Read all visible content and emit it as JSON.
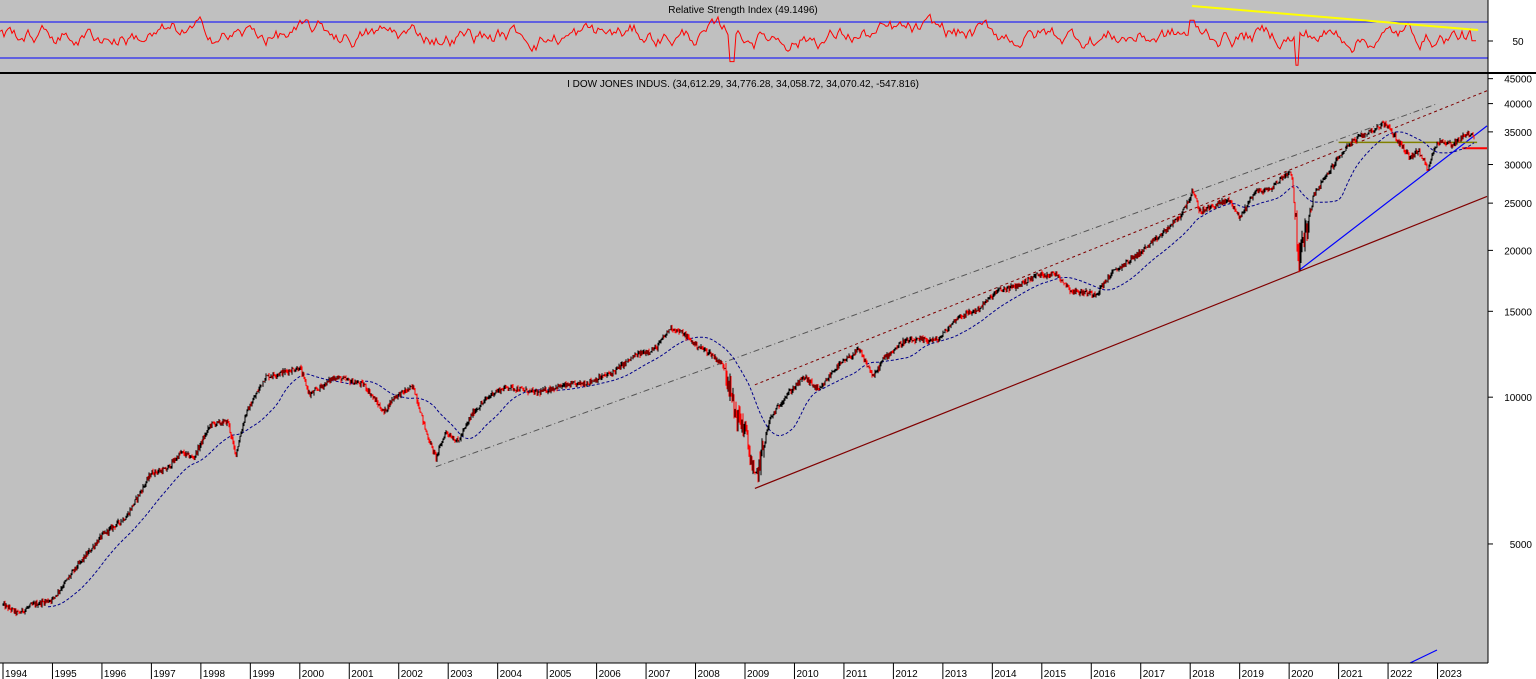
{
  "rsi_panel": {
    "title": "Relative Strength Index (49.1496)",
    "upper_level": 70,
    "lower_level": 30,
    "mid_tick_label": "50",
    "rsi_color": "#ff0000",
    "level_line_color": "#0000ff",
    "trendline_color": "#ffff00"
  },
  "price_panel": {
    "title": "I DOW JONES INDUS. (34,612.29, 34,776.28, 34,058.72, 34,070.42, -547.816)",
    "y_scale": "log",
    "y_ticks": [
      {
        "label": "45000",
        "value": 45000
      },
      {
        "label": "40000",
        "value": 40000
      },
      {
        "label": "35000",
        "value": 35000
      },
      {
        "label": "30000",
        "value": 30000
      },
      {
        "label": "25000",
        "value": 25000
      },
      {
        "label": "20000",
        "value": 20000
      },
      {
        "label": "15000",
        "value": 15000
      },
      {
        "label": "10000",
        "value": 10000
      },
      {
        "label": "5000",
        "value": 5000
      }
    ],
    "x_ticks": [
      "1994",
      "1995",
      "1996",
      "1997",
      "1998",
      "1999",
      "2000",
      "2001",
      "2002",
      "2003",
      "2004",
      "2005",
      "2006",
      "2007",
      "2008",
      "2009",
      "2010",
      "2011",
      "2012",
      "2013",
      "2014",
      "2015",
      "2016",
      "2017",
      "2018",
      "2019",
      "2020",
      "2021",
      "2022",
      "2023"
    ],
    "background_color": "#c0c0c0",
    "down_bar_color": "#ff0000",
    "up_bar_color": "#000000",
    "moving_average_color": "#00008b",
    "support_line_color": "#800000",
    "channel_line_color": "#800000",
    "upper_trendline_color": "#555555",
    "blue_trendline_color": "#0000ff",
    "horizontal_level_color": "#808000"
  },
  "chart_data": {
    "type": "line",
    "title": "I DOW JONES INDUS. (34,612.29, 34,776.28, 34,058.72, 34,070.42, -547.816)",
    "last_bar": {
      "open": 34612.29,
      "high": 34776.28,
      "low": 34058.72,
      "close": 34070.42,
      "change": -547.816
    },
    "y_scale": "log",
    "ylim": [
      2850,
      46000
    ],
    "xlim": [
      1994.0,
      2024.0
    ],
    "grid": false,
    "series": [
      {
        "values_kind": "approximate close",
        "x": [
          1994.0,
          1994.3,
          1994.6,
          1995.0,
          1995.5,
          1996.0,
          1996.5,
          1997.0,
          1997.3,
          1997.6,
          1997.85,
          1998.2,
          1998.55,
          1998.7,
          1998.9,
          1999.3,
          1999.6,
          2000.0,
          2000.2,
          2000.7,
          2001.0,
          2001.3,
          2001.7,
          2001.9,
          2002.3,
          2002.55,
          2002.75,
          2002.95,
          2003.2,
          2003.5,
          2003.9,
          2004.2,
          2004.8,
          2005.2,
          2005.8,
          2006.3,
          2006.8,
          2007.2,
          2007.5,
          2007.75,
          2008.0,
          2008.3,
          2008.6,
          2008.8,
          2009.0,
          2009.2,
          2009.5,
          2009.8,
          2010.2,
          2010.5,
          2010.8,
          2011.3,
          2011.6,
          2011.8,
          2012.2,
          2012.6,
          2012.9,
          2013.3,
          2013.7,
          2014.1,
          2014.5,
          2014.9,
          2015.3,
          2015.6,
          2016.1,
          2016.4,
          2016.9,
          2017.3,
          2017.8,
          2018.05,
          2018.2,
          2018.6,
          2018.8,
          2019.0,
          2019.3,
          2019.6,
          2019.9,
          2020.05,
          2020.2,
          2020.5,
          2020.9,
          2021.2,
          2021.5,
          2021.95,
          2022.2,
          2022.45,
          2022.6,
          2022.8,
          2023.0,
          2023.3,
          2023.6,
          2023.75
        ],
        "y": [
          3750,
          3600,
          3750,
          3850,
          4500,
          5200,
          5700,
          7000,
          7100,
          7700,
          7500,
          8800,
          8900,
          7600,
          9200,
          11000,
          11200,
          11500,
          10100,
          11000,
          10800,
          10600,
          9300,
          10000,
          10500,
          8500,
          7500,
          8500,
          8100,
          9300,
          10200,
          10500,
          10200,
          10500,
          10700,
          11200,
          12200,
          12600,
          13900,
          13500,
          12800,
          12300,
          11500,
          9300,
          8600,
          6700,
          9000,
          10000,
          11000,
          10300,
          11400,
          12500,
          11000,
          12000,
          13000,
          13100,
          13100,
          14600,
          15100,
          16500,
          16900,
          17800,
          17900,
          16500,
          16300,
          17900,
          19500,
          21000,
          23500,
          26400,
          24000,
          25000,
          25400,
          23300,
          26400,
          26600,
          28500,
          29000,
          19000,
          26000,
          30000,
          33000,
          34500,
          36500,
          33500,
          31000,
          32000,
          29500,
          33500,
          33000,
          34800,
          34070
        ]
      },
      {
        "name": "RSI",
        "current": 49.1496,
        "upper": 70,
        "lower": 30
      }
    ],
    "annotations": [
      {
        "kind": "support",
        "x": [
          2009.2,
          2024.0
        ],
        "y": [
          6500,
          25800
        ]
      },
      {
        "kind": "channel",
        "x": [
          2009.2,
          2024.0
        ],
        "y": [
          10600,
          42500
        ]
      },
      {
        "kind": "trend",
        "x": [
          2002.75,
          2023.0
        ],
        "y": [
          7200,
          40000
        ]
      },
      {
        "kind": "trend",
        "x": [
          2020.2,
          2024.0
        ],
        "y": [
          18200,
          36000
        ]
      },
      {
        "kind": "level",
        "x": [
          2021.0,
          2023.8
        ],
        "y": [
          33300,
          33300
        ]
      },
      {
        "kind": "level",
        "x": [
          2023.5,
          2024.0
        ],
        "y": [
          32400,
          32400
        ]
      }
    ]
  }
}
